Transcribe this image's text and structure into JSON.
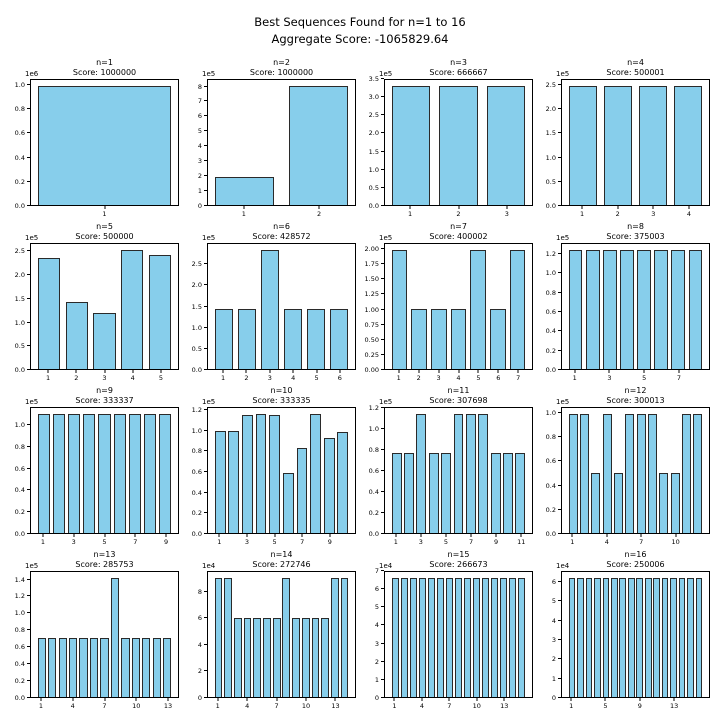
{
  "header": {
    "title": "Best Sequences Found for n=1 to 16",
    "subtitle": "Aggregate Score: -1065829.64"
  },
  "colors": {
    "bar_fill": "#87CEEB",
    "bar_edge": "#2a2a2a",
    "axis": "#000000"
  },
  "chart_data": [
    {
      "type": "bar",
      "title": "n=1",
      "score_label": "Score: 1000000",
      "offset": "1e6",
      "values": [
        1.0
      ],
      "xticks": [
        1
      ],
      "yticks": [
        "0.0",
        "0.2",
        "0.4",
        "0.6",
        "0.8",
        "1.0"
      ]
    },
    {
      "type": "bar",
      "title": "n=2",
      "score_label": "Score: 1000000",
      "offset": "1e5",
      "values": [
        1.9,
        8.1
      ],
      "xticks": [
        1,
        2
      ],
      "yticks": [
        "0",
        "1",
        "2",
        "3",
        "4",
        "5",
        "6",
        "7",
        "8"
      ]
    },
    {
      "type": "bar",
      "title": "n=3",
      "score_label": "Score: 666667",
      "offset": "1e5",
      "values": [
        3.333,
        3.333,
        3.333
      ],
      "xticks": [
        1,
        2,
        3
      ],
      "yticks": [
        "0.0",
        "0.5",
        "1.0",
        "1.5",
        "2.0",
        "2.5",
        "3.0",
        "3.5"
      ]
    },
    {
      "type": "bar",
      "title": "n=4",
      "score_label": "Score: 500001",
      "offset": "1e5",
      "values": [
        2.5,
        2.5,
        2.5,
        2.5
      ],
      "xticks": [
        1,
        2,
        3,
        4
      ],
      "yticks": [
        "0.0",
        "0.5",
        "1.0",
        "1.5",
        "2.0",
        "2.5"
      ]
    },
    {
      "type": "bar",
      "title": "n=5",
      "score_label": "Score: 500000",
      "offset": "1e5",
      "values": [
        2.37,
        1.43,
        1.2,
        2.55,
        2.45
      ],
      "xticks": [
        1,
        2,
        3,
        4,
        5
      ],
      "yticks": [
        "0.0",
        "0.5",
        "1.0",
        "1.5",
        "2.0",
        "2.5"
      ]
    },
    {
      "type": "bar",
      "title": "n=6",
      "score_label": "Score: 428572",
      "offset": "1e5",
      "values": [
        1.429,
        1.429,
        2.857,
        1.429,
        1.429,
        1.429
      ],
      "xticks": [
        1,
        2,
        3,
        4,
        5,
        6
      ],
      "yticks": [
        "0.0",
        "0.5",
        "1.0",
        "1.5",
        "2.0",
        "2.5"
      ]
    },
    {
      "type": "bar",
      "title": "n=7",
      "score_label": "Score: 400002",
      "offset": "1e5",
      "values": [
        2.0,
        1.0,
        1.0,
        1.0,
        2.0,
        1.0,
        2.0
      ],
      "xticks": [
        1,
        2,
        3,
        4,
        5,
        6,
        7
      ],
      "yticks": [
        "0.00",
        "0.25",
        "0.50",
        "0.75",
        "1.00",
        "1.25",
        "1.50",
        "1.75",
        "2.00"
      ]
    },
    {
      "type": "bar",
      "title": "n=8",
      "score_label": "Score: 375003",
      "offset": "1e5",
      "values": [
        1.25,
        1.25,
        1.25,
        1.25,
        1.25,
        1.25,
        1.25,
        1.25
      ],
      "xticks": [
        1,
        3,
        5,
        7
      ],
      "yticks": [
        "0.0",
        "0.2",
        "0.4",
        "0.6",
        "0.8",
        "1.0",
        "1.2"
      ]
    },
    {
      "type": "bar",
      "title": "n=9",
      "score_label": "Score: 333337",
      "offset": "1e5",
      "values": [
        1.111,
        1.111,
        1.111,
        1.111,
        1.111,
        1.111,
        1.111,
        1.111,
        1.111
      ],
      "xticks": [
        1,
        3,
        5,
        7,
        9
      ],
      "yticks": [
        "0.0",
        "0.2",
        "0.4",
        "0.6",
        "0.8",
        "1.0"
      ]
    },
    {
      "type": "bar",
      "title": "n=10",
      "score_label": "Score: 333335",
      "offset": "1e5",
      "values": [
        1.0,
        1.0,
        1.16,
        1.17,
        1.16,
        0.59,
        0.84,
        1.17,
        0.93,
        0.99
      ],
      "xticks": [
        1,
        3,
        5,
        7,
        9
      ],
      "yticks": [
        "0.0",
        "0.2",
        "0.4",
        "0.6",
        "0.8",
        "1.0",
        "1.2"
      ]
    },
    {
      "type": "bar",
      "title": "n=11",
      "score_label": "Score: 307698",
      "offset": "1e5",
      "values": [
        0.77,
        0.77,
        1.15,
        0.77,
        0.77,
        1.15,
        1.15,
        1.15,
        0.77,
        0.77,
        0.77
      ],
      "xticks": [
        1,
        3,
        5,
        7,
        9,
        11
      ],
      "yticks": [
        "0.0",
        "0.2",
        "0.4",
        "0.6",
        "0.8",
        "1.0",
        "1.2"
      ]
    },
    {
      "type": "bar",
      "title": "n=12",
      "score_label": "Score: 300013",
      "offset": "1e5",
      "values": [
        1.0,
        1.0,
        0.5,
        1.0,
        0.5,
        1.0,
        1.0,
        1.0,
        0.5,
        0.5,
        1.0,
        1.0
      ],
      "xticks": [
        1,
        4,
        7,
        10
      ],
      "yticks": [
        "0.0",
        "0.2",
        "0.4",
        "0.6",
        "0.8",
        "1.0"
      ]
    },
    {
      "type": "bar",
      "title": "n=13",
      "score_label": "Score: 285753",
      "offset": "1e5",
      "values": [
        0.714,
        0.714,
        0.714,
        0.714,
        0.714,
        0.714,
        0.714,
        1.429,
        0.714,
        0.714,
        0.714,
        0.714,
        0.714
      ],
      "xticks": [
        1,
        4,
        7,
        10,
        13
      ],
      "yticks": [
        "0.0",
        "0.2",
        "0.4",
        "0.6",
        "0.8",
        "1.0",
        "1.2",
        "1.4"
      ]
    },
    {
      "type": "bar",
      "title": "n=14",
      "score_label": "Score: 272746",
      "offset": "1e4",
      "values": [
        9.09,
        9.09,
        6.06,
        6.06,
        6.06,
        6.06,
        6.06,
        9.09,
        6.06,
        6.06,
        6.06,
        6.06,
        9.09,
        9.09
      ],
      "xticks": [
        1,
        4,
        7,
        10,
        13
      ],
      "yticks": [
        "0",
        "2",
        "4",
        "6",
        "8"
      ]
    },
    {
      "type": "bar",
      "title": "n=15",
      "score_label": "Score: 266673",
      "offset": "1e4",
      "values": [
        6.667,
        6.667,
        6.667,
        6.667,
        6.667,
        6.667,
        6.667,
        6.667,
        6.667,
        6.667,
        6.667,
        6.667,
        6.667,
        6.667,
        6.667
      ],
      "xticks": [
        1,
        4,
        7,
        10,
        13
      ],
      "yticks": [
        "0",
        "1",
        "2",
        "3",
        "4",
        "5",
        "6",
        "7"
      ]
    },
    {
      "type": "bar",
      "title": "n=16",
      "score_label": "Score: 250006",
      "offset": "1e4",
      "values": [
        6.25,
        6.25,
        6.25,
        6.25,
        6.25,
        6.25,
        6.25,
        6.25,
        6.25,
        6.25,
        6.25,
        6.25,
        6.25,
        6.25,
        6.25,
        6.25
      ],
      "xticks": [
        1,
        5,
        9,
        13
      ],
      "yticks": [
        "0",
        "1",
        "2",
        "3",
        "4",
        "5",
        "6"
      ]
    }
  ]
}
